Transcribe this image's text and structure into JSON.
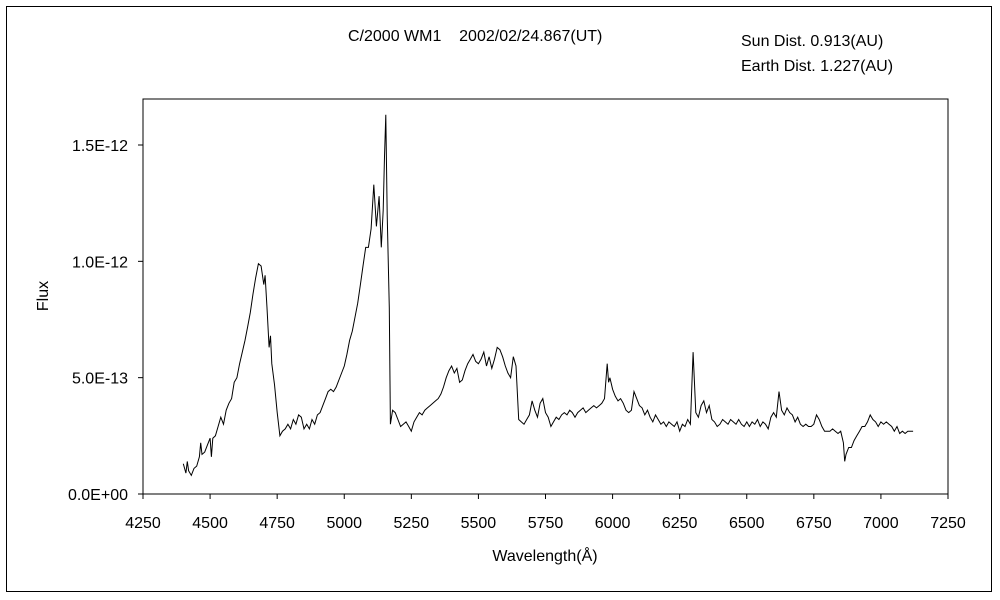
{
  "chart_data": {
    "type": "line",
    "title": "C/2000 WM1    2002/02/24.867(UT)",
    "annotations": [
      "Sun Dist. 0.913(AU)",
      "Earth Dist. 1.227(AU)"
    ],
    "xlabel": "Wavelength(Å)",
    "ylabel": "Flux",
    "xlim": [
      4250,
      7250
    ],
    "ylim": [
      0,
      1.7e-12
    ],
    "x_ticks": [
      4250,
      4500,
      4750,
      5000,
      5250,
      5500,
      5750,
      6000,
      6250,
      6500,
      6750,
      7000,
      7250
    ],
    "x_tick_labels": [
      "4250",
      "4500",
      "4750",
      "5000",
      "5250",
      "5500",
      "5750",
      "6000",
      "6250",
      "6500",
      "6750",
      "7000",
      "7250"
    ],
    "y_ticks": [
      0,
      5e-13,
      1e-12,
      1.5e-12
    ],
    "y_tick_labels": [
      "0.0E+00",
      "5.0E-13",
      "1.0E-12",
      "1.5E-12"
    ],
    "grid": false,
    "series": [
      {
        "name": "",
        "color": "#000000",
        "points": [
          [
            4400,
            1.3e-13
          ],
          [
            4410,
            9e-14
          ],
          [
            4415,
            1.4e-13
          ],
          [
            4420,
            1e-13
          ],
          [
            4430,
            8e-14
          ],
          [
            4440,
            1.1e-13
          ],
          [
            4450,
            1.2e-13
          ],
          [
            4460,
            1.6e-13
          ],
          [
            4465,
            2.2e-13
          ],
          [
            4470,
            1.7e-13
          ],
          [
            4480,
            1.8e-13
          ],
          [
            4490,
            2.1e-13
          ],
          [
            4500,
            2.4e-13
          ],
          [
            4505,
            1.6e-13
          ],
          [
            4510,
            2.4e-13
          ],
          [
            4520,
            2.5e-13
          ],
          [
            4530,
            2.9e-13
          ],
          [
            4540,
            3.3e-13
          ],
          [
            4550,
            3e-13
          ],
          [
            4560,
            3.6e-13
          ],
          [
            4570,
            3.9e-13
          ],
          [
            4580,
            4.1e-13
          ],
          [
            4590,
            4.8e-13
          ],
          [
            4600,
            5e-13
          ],
          [
            4610,
            5.6e-13
          ],
          [
            4620,
            6.1e-13
          ],
          [
            4630,
            6.6e-13
          ],
          [
            4640,
            7.2e-13
          ],
          [
            4650,
            7.8e-13
          ],
          [
            4660,
            8.6e-13
          ],
          [
            4670,
            9.3e-13
          ],
          [
            4680,
            9.9e-13
          ],
          [
            4690,
            9.8e-13
          ],
          [
            4700,
            9e-13
          ],
          [
            4705,
            9.4e-13
          ],
          [
            4712,
            8e-13
          ],
          [
            4720,
            6.3e-13
          ],
          [
            4725,
            6.8e-13
          ],
          [
            4730,
            5.6e-13
          ],
          [
            4740,
            4.7e-13
          ],
          [
            4750,
            3.5e-13
          ],
          [
            4760,
            2.5e-13
          ],
          [
            4770,
            2.7e-13
          ],
          [
            4780,
            2.8e-13
          ],
          [
            4790,
            3e-13
          ],
          [
            4800,
            2.8e-13
          ],
          [
            4810,
            3.2e-13
          ],
          [
            4820,
            3e-13
          ],
          [
            4830,
            3.4e-13
          ],
          [
            4840,
            3.3e-13
          ],
          [
            4850,
            2.8e-13
          ],
          [
            4860,
            3e-13
          ],
          [
            4870,
            2.8e-13
          ],
          [
            4880,
            3.2e-13
          ],
          [
            4890,
            3e-13
          ],
          [
            4900,
            3.4e-13
          ],
          [
            4910,
            3.5e-13
          ],
          [
            4920,
            3.8e-13
          ],
          [
            4930,
            4.1e-13
          ],
          [
            4940,
            4.4e-13
          ],
          [
            4950,
            4.5e-13
          ],
          [
            4960,
            4.4e-13
          ],
          [
            4970,
            4.6e-13
          ],
          [
            4980,
            4.9e-13
          ],
          [
            4990,
            5.2e-13
          ],
          [
            5000,
            5.5e-13
          ],
          [
            5010,
            6e-13
          ],
          [
            5020,
            6.6e-13
          ],
          [
            5030,
            7e-13
          ],
          [
            5040,
            7.6e-13
          ],
          [
            5050,
            8.2e-13
          ],
          [
            5060,
            9e-13
          ],
          [
            5070,
            9.8e-13
          ],
          [
            5080,
            1.06e-12
          ],
          [
            5090,
            1.06e-12
          ],
          [
            5100,
            1.14e-12
          ],
          [
            5110,
            1.33e-12
          ],
          [
            5120,
            1.15e-12
          ],
          [
            5130,
            1.28e-12
          ],
          [
            5138,
            1.06e-12
          ],
          [
            5145,
            1.22e-12
          ],
          [
            5150,
            1.45e-12
          ],
          [
            5155,
            1.63e-12
          ],
          [
            5160,
            1.2e-12
          ],
          [
            5168,
            8e-13
          ],
          [
            5172,
            3e-13
          ],
          [
            5180,
            3.6e-13
          ],
          [
            5190,
            3.5e-13
          ],
          [
            5200,
            3.2e-13
          ],
          [
            5210,
            2.9e-13
          ],
          [
            5220,
            3e-13
          ],
          [
            5230,
            3.1e-13
          ],
          [
            5240,
            2.9e-13
          ],
          [
            5250,
            2.7e-13
          ],
          [
            5260,
            3.1e-13
          ],
          [
            5270,
            3.3e-13
          ],
          [
            5280,
            3.5e-13
          ],
          [
            5290,
            3.4e-13
          ],
          [
            5300,
            3.6e-13
          ],
          [
            5310,
            3.7e-13
          ],
          [
            5320,
            3.8e-13
          ],
          [
            5330,
            3.9e-13
          ],
          [
            5340,
            4e-13
          ],
          [
            5350,
            4.1e-13
          ],
          [
            5360,
            4.3e-13
          ],
          [
            5370,
            4.6e-13
          ],
          [
            5380,
            5e-13
          ],
          [
            5390,
            5.3e-13
          ],
          [
            5400,
            5.5e-13
          ],
          [
            5410,
            5.2e-13
          ],
          [
            5420,
            5.4e-13
          ],
          [
            5430,
            4.8e-13
          ],
          [
            5440,
            4.9e-13
          ],
          [
            5450,
            5.3e-13
          ],
          [
            5460,
            5.6e-13
          ],
          [
            5470,
            5.8e-13
          ],
          [
            5480,
            6e-13
          ],
          [
            5490,
            5.7e-13
          ],
          [
            5500,
            5.6e-13
          ],
          [
            5510,
            5.8e-13
          ],
          [
            5520,
            6.1e-13
          ],
          [
            5530,
            5.5e-13
          ],
          [
            5540,
            5.9e-13
          ],
          [
            5550,
            5.4e-13
          ],
          [
            5560,
            5.8e-13
          ],
          [
            5570,
            6.3e-13
          ],
          [
            5580,
            6.2e-13
          ],
          [
            5590,
            5.9e-13
          ],
          [
            5600,
            5.5e-13
          ],
          [
            5610,
            5.2e-13
          ],
          [
            5620,
            5e-13
          ],
          [
            5630,
            5.9e-13
          ],
          [
            5640,
            5.5e-13
          ],
          [
            5650,
            3.2e-13
          ],
          [
            5660,
            3.1e-13
          ],
          [
            5670,
            3e-13
          ],
          [
            5680,
            3.2e-13
          ],
          [
            5690,
            3.4e-13
          ],
          [
            5700,
            4e-13
          ],
          [
            5710,
            3.6e-13
          ],
          [
            5720,
            3.3e-13
          ],
          [
            5730,
            3.9e-13
          ],
          [
            5740,
            4.1e-13
          ],
          [
            5750,
            3.5e-13
          ],
          [
            5760,
            3.3e-13
          ],
          [
            5770,
            2.9e-13
          ],
          [
            5780,
            3.1e-13
          ],
          [
            5790,
            3.3e-13
          ],
          [
            5800,
            3.2e-13
          ],
          [
            5810,
            3.4e-13
          ],
          [
            5820,
            3.5e-13
          ],
          [
            5830,
            3.4e-13
          ],
          [
            5840,
            3.6e-13
          ],
          [
            5850,
            3.5e-13
          ],
          [
            5860,
            3.3e-13
          ],
          [
            5870,
            3.5e-13
          ],
          [
            5880,
            3.6e-13
          ],
          [
            5890,
            3.7e-13
          ],
          [
            5900,
            3.5e-13
          ],
          [
            5910,
            3.6e-13
          ],
          [
            5920,
            3.7e-13
          ],
          [
            5930,
            3.8e-13
          ],
          [
            5940,
            3.7e-13
          ],
          [
            5950,
            3.8e-13
          ],
          [
            5960,
            3.9e-13
          ],
          [
            5970,
            4.1e-13
          ],
          [
            5980,
            5.6e-13
          ],
          [
            5985,
            4.8e-13
          ],
          [
            5990,
            5e-13
          ],
          [
            6000,
            4.5e-13
          ],
          [
            6010,
            4.2e-13
          ],
          [
            6020,
            4e-13
          ],
          [
            6030,
            4.1e-13
          ],
          [
            6040,
            3.9e-13
          ],
          [
            6050,
            3.6e-13
          ],
          [
            6060,
            3.5e-13
          ],
          [
            6070,
            3.6e-13
          ],
          [
            6080,
            4.4e-13
          ],
          [
            6090,
            4.1e-13
          ],
          [
            6100,
            3.8e-13
          ],
          [
            6110,
            3.7e-13
          ],
          [
            6120,
            3.4e-13
          ],
          [
            6130,
            3.6e-13
          ],
          [
            6140,
            3.3e-13
          ],
          [
            6150,
            3.1e-13
          ],
          [
            6160,
            3.4e-13
          ],
          [
            6170,
            3.2e-13
          ],
          [
            6180,
            3e-13
          ],
          [
            6190,
            3.1e-13
          ],
          [
            6200,
            2.9e-13
          ],
          [
            6210,
            3.1e-13
          ],
          [
            6220,
            3e-13
          ],
          [
            6230,
            2.9e-13
          ],
          [
            6240,
            3.1e-13
          ],
          [
            6250,
            2.7e-13
          ],
          [
            6260,
            3e-13
          ],
          [
            6270,
            2.9e-13
          ],
          [
            6280,
            3.2e-13
          ],
          [
            6290,
            3e-13
          ],
          [
            6300,
            6.1e-13
          ],
          [
            6310,
            3.5e-13
          ],
          [
            6320,
            3.3e-13
          ],
          [
            6330,
            3.8e-13
          ],
          [
            6340,
            4e-13
          ],
          [
            6350,
            3.5e-13
          ],
          [
            6360,
            3.8e-13
          ],
          [
            6370,
            3.2e-13
          ],
          [
            6380,
            3.1e-13
          ],
          [
            6390,
            2.9e-13
          ],
          [
            6400,
            3e-13
          ],
          [
            6410,
            3.2e-13
          ],
          [
            6420,
            3.1e-13
          ],
          [
            6430,
            3e-13
          ],
          [
            6440,
            3.2e-13
          ],
          [
            6450,
            3.1e-13
          ],
          [
            6460,
            3e-13
          ],
          [
            6470,
            3.2e-13
          ],
          [
            6480,
            3e-13
          ],
          [
            6490,
            2.9e-13
          ],
          [
            6500,
            3.1e-13
          ],
          [
            6510,
            2.9e-13
          ],
          [
            6520,
            3.1e-13
          ],
          [
            6530,
            3e-13
          ],
          [
            6540,
            3.2e-13
          ],
          [
            6550,
            2.9e-13
          ],
          [
            6560,
            3.1e-13
          ],
          [
            6570,
            3e-13
          ],
          [
            6580,
            2.8e-13
          ],
          [
            6590,
            3.3e-13
          ],
          [
            6600,
            3.5e-13
          ],
          [
            6610,
            3.3e-13
          ],
          [
            6620,
            4.4e-13
          ],
          [
            6630,
            3.6e-13
          ],
          [
            6640,
            3.4e-13
          ],
          [
            6650,
            3.7e-13
          ],
          [
            6660,
            3.5e-13
          ],
          [
            6670,
            3.4e-13
          ],
          [
            6680,
            3.1e-13
          ],
          [
            6690,
            3.3e-13
          ],
          [
            6700,
            3e-13
          ],
          [
            6710,
            2.9e-13
          ],
          [
            6720,
            3e-13
          ],
          [
            6730,
            2.9e-13
          ],
          [
            6740,
            2.9e-13
          ],
          [
            6750,
            3e-13
          ],
          [
            6760,
            3.4e-13
          ],
          [
            6770,
            3.2e-13
          ],
          [
            6780,
            2.9e-13
          ],
          [
            6790,
            2.7e-13
          ],
          [
            6800,
            2.7e-13
          ],
          [
            6810,
            2.7e-13
          ],
          [
            6820,
            2.8e-13
          ],
          [
            6830,
            2.7e-13
          ],
          [
            6840,
            2.6e-13
          ],
          [
            6850,
            2.7e-13
          ],
          [
            6860,
            2.2e-13
          ],
          [
            6865,
            1.4e-13
          ],
          [
            6870,
            1.7e-13
          ],
          [
            6880,
            2e-13
          ],
          [
            6890,
            2e-13
          ],
          [
            6900,
            2.3e-13
          ],
          [
            6910,
            2.5e-13
          ],
          [
            6920,
            2.7e-13
          ],
          [
            6930,
            2.9e-13
          ],
          [
            6940,
            2.9e-13
          ],
          [
            6950,
            3.1e-13
          ],
          [
            6960,
            3.4e-13
          ],
          [
            6970,
            3.2e-13
          ],
          [
            6980,
            3.1e-13
          ],
          [
            6990,
            2.9e-13
          ],
          [
            7000,
            3.1e-13
          ],
          [
            7010,
            3e-13
          ],
          [
            7020,
            3.1e-13
          ],
          [
            7030,
            3e-13
          ],
          [
            7040,
            2.9e-13
          ],
          [
            7050,
            2.7e-13
          ],
          [
            7060,
            2.9e-13
          ],
          [
            7070,
            2.6e-13
          ],
          [
            7080,
            2.7e-13
          ],
          [
            7090,
            2.6e-13
          ],
          [
            7100,
            2.7e-13
          ],
          [
            7110,
            2.7e-13
          ],
          [
            7120,
            2.7e-13
          ]
        ]
      }
    ]
  }
}
